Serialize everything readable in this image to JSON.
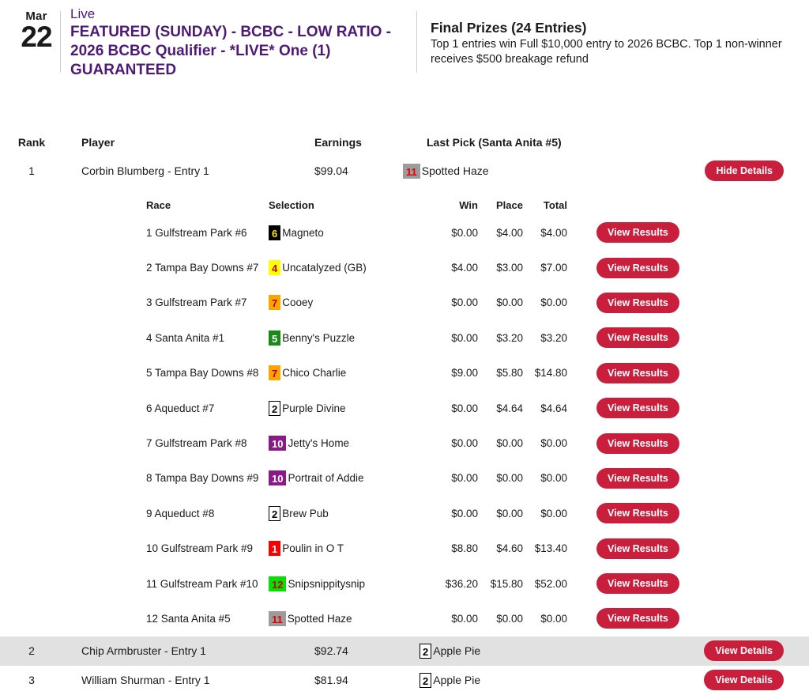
{
  "header": {
    "date_month": "Mar",
    "date_day": "22",
    "live_label": "Live",
    "title": "FEATURED (SUNDAY) - BCBC - LOW RATIO - 2026 BCBC Qualifier - *LIVE* One (1) GUARANTEED",
    "prizes_title": "Final Prizes (24 Entries)",
    "prizes_text": "Top 1 entries win Full $10,000 entry to 2026 BCBC. Top 1 non-winner receives $500 breakage refund"
  },
  "colors": {
    "purple": "#4e1a78",
    "red": "#c91f3d",
    "row_highlight": "#e1e1e1",
    "text": "#1a1a1a"
  },
  "leaderboard": {
    "columns": {
      "rank": "Rank",
      "player": "Player",
      "earnings": "Earnings",
      "last_pick": "Last Pick (Santa Anita #5)"
    },
    "rows": [
      {
        "rank": "1",
        "player": "Corbin Blumberg - Entry 1",
        "earnings": "$99.04",
        "pick_number": "11",
        "pick_cloth": "gray",
        "pick_name": "Spotted Haze",
        "button": "Hide Details"
      },
      {
        "rank": "2",
        "player": "Chip Armbruster - Entry 1",
        "earnings": "$92.74",
        "pick_number": "2",
        "pick_cloth": "white",
        "pick_name": "Apple Pie",
        "button": "View Details"
      },
      {
        "rank": "3",
        "player": "William Shurman - Entry 1",
        "earnings": "$81.94",
        "pick_number": "2",
        "pick_cloth": "white",
        "pick_name": "Apple Pie",
        "button": "View Details"
      }
    ]
  },
  "details": {
    "columns": {
      "race": "Race",
      "selection": "Selection",
      "win": "Win",
      "place": "Place",
      "total": "Total"
    },
    "button_label": "View Results",
    "rows": [
      {
        "race": "1 Gulfstream Park #6",
        "number": "6",
        "cloth": "black",
        "horse": "Magneto",
        "win": "$0.00",
        "place": "$4.00",
        "total": "$4.00"
      },
      {
        "race": "2 Tampa Bay Downs #7",
        "number": "4",
        "cloth": "yellow",
        "horse": "Uncatalyzed (GB)",
        "win": "$4.00",
        "place": "$3.00",
        "total": "$7.00"
      },
      {
        "race": "3 Gulfstream Park #7",
        "number": "7",
        "cloth": "orange",
        "horse": "Cooey",
        "win": "$0.00",
        "place": "$0.00",
        "total": "$0.00"
      },
      {
        "race": "4 Santa Anita #1",
        "number": "5",
        "cloth": "green",
        "horse": "Benny's Puzzle",
        "win": "$0.00",
        "place": "$3.20",
        "total": "$3.20"
      },
      {
        "race": "5 Tampa Bay Downs #8",
        "number": "7",
        "cloth": "orange",
        "horse": "Chico Charlie",
        "win": "$9.00",
        "place": "$5.80",
        "total": "$14.80"
      },
      {
        "race": "6 Aqueduct #7",
        "number": "2",
        "cloth": "white",
        "horse": "Purple Divine",
        "win": "$0.00",
        "place": "$4.64",
        "total": "$4.64"
      },
      {
        "race": "7 Gulfstream Park #8",
        "number": "10",
        "cloth": "purple",
        "horse": "Jetty's Home",
        "win": "$0.00",
        "place": "$0.00",
        "total": "$0.00"
      },
      {
        "race": "8 Tampa Bay Downs #9",
        "number": "10",
        "cloth": "purple",
        "horse": "Portrait of Addie",
        "win": "$0.00",
        "place": "$0.00",
        "total": "$0.00"
      },
      {
        "race": "9 Aqueduct #8",
        "number": "2",
        "cloth": "white",
        "horse": "Brew Pub",
        "win": "$0.00",
        "place": "$0.00",
        "total": "$0.00"
      },
      {
        "race": "10 Gulfstream Park #9",
        "number": "1",
        "cloth": "red",
        "horse": "Poulin in O T",
        "win": "$8.80",
        "place": "$4.60",
        "total": "$13.40"
      },
      {
        "race": "11 Gulfstream Park #10",
        "number": "12",
        "cloth": "lime",
        "horse": "Snipsnippitysnip",
        "win": "$36.20",
        "place": "$15.80",
        "total": "$52.00"
      },
      {
        "race": "12 Santa Anita #5",
        "number": "11",
        "cloth": "gray",
        "horse": "Spotted Haze",
        "win": "$0.00",
        "place": "$0.00",
        "total": "$0.00"
      }
    ]
  },
  "cloth_styles": {
    "black": {
      "bg": "#000000",
      "fg": "#ffe400",
      "border": "#000000"
    },
    "yellow": {
      "bg": "#ffff00",
      "fg": "#cc0000",
      "border": "#ffff00"
    },
    "orange": {
      "bg": "#ffa400",
      "fg": "#bb0000",
      "border": "#ffa400"
    },
    "green": {
      "bg": "#188a18",
      "fg": "#ffffff",
      "border": "#188a18"
    },
    "white": {
      "bg": "#ffffff",
      "fg": "#000000",
      "border": "#000000"
    },
    "purple": {
      "bg": "#8a1a8a",
      "fg": "#ffffff",
      "border": "#8a1a8a"
    },
    "red": {
      "bg": "#fa0000",
      "fg": "#ffffff",
      "border": "#fa0000"
    },
    "lime": {
      "bg": "#00e300",
      "fg": "#cc0000",
      "border": "#00e300"
    },
    "gray": {
      "bg": "#9c9c9c",
      "fg": "#e00000",
      "border": "#9c9c9c"
    }
  }
}
